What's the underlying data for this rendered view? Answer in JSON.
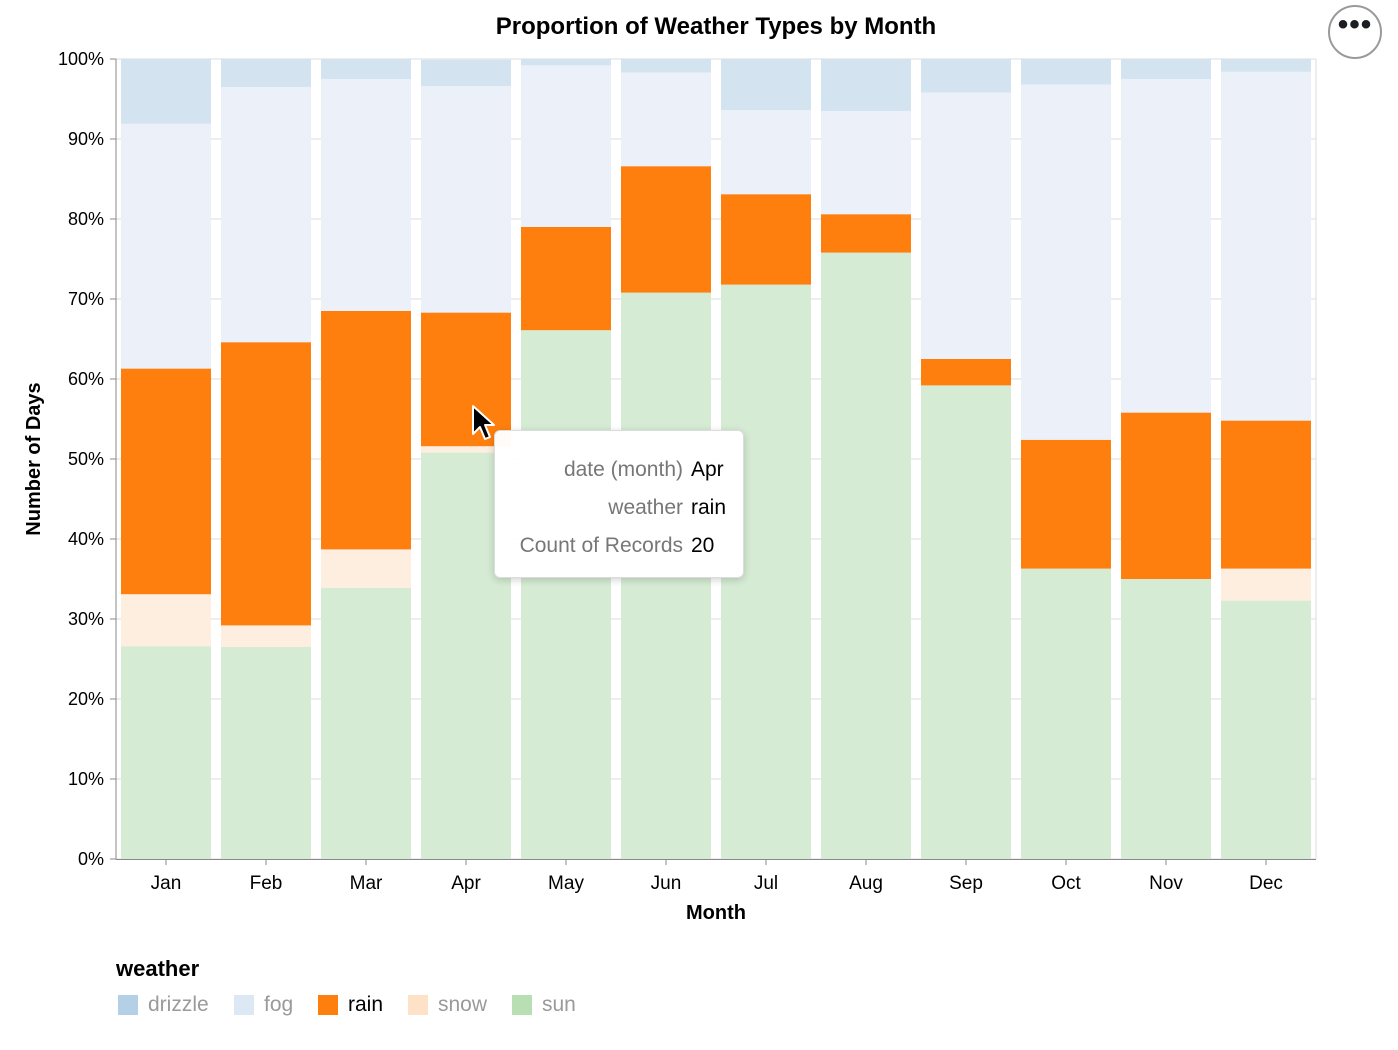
{
  "chart_data": {
    "type": "bar",
    "stacked": "normalize",
    "title": "Proportion of Weather Types by Month",
    "xlabel": "Month",
    "ylabel": "Number of Days",
    "ylim": [
      0,
      1
    ],
    "y_ticks": [
      "0%",
      "10%",
      "20%",
      "30%",
      "40%",
      "50%",
      "60%",
      "70%",
      "80%",
      "90%",
      "100%"
    ],
    "grid": true,
    "categories": [
      "Jan",
      "Feb",
      "Mar",
      "Apr",
      "May",
      "Jun",
      "Jul",
      "Aug",
      "Sep",
      "Oct",
      "Nov",
      "Dec"
    ],
    "series": [
      {
        "name": "sun",
        "color": "#d5ebd3",
        "legend_swatch": "#b8dfb4",
        "values": [
          0.266,
          0.265,
          0.339,
          0.508,
          0.661,
          0.708,
          0.718,
          0.758,
          0.592,
          0.363,
          0.35,
          0.323
        ]
      },
      {
        "name": "snow",
        "color": "#fdeee0",
        "legend_swatch": "#fde2c8",
        "values": [
          0.065,
          0.027,
          0.048,
          0.008,
          0.0,
          0.0,
          0.0,
          0.0,
          0.0,
          0.0,
          0.0,
          0.04
        ]
      },
      {
        "name": "rain",
        "color": "#ff7f0e",
        "legend_swatch": "#ff7f0e",
        "values": [
          0.282,
          0.354,
          0.298,
          0.167,
          0.129,
          0.158,
          0.113,
          0.048,
          0.033,
          0.161,
          0.208,
          0.185
        ]
      },
      {
        "name": "fog",
        "color": "#ecf1f9",
        "legend_swatch": "#dde8f5",
        "values": [
          0.306,
          0.319,
          0.29,
          0.283,
          0.202,
          0.117,
          0.105,
          0.129,
          0.333,
          0.444,
          0.417,
          0.436
        ]
      },
      {
        "name": "drizzle",
        "color": "#d3e3ef",
        "legend_swatch": "#b4d0e6",
        "values": [
          0.081,
          0.035,
          0.025,
          0.033,
          0.008,
          0.017,
          0.064,
          0.065,
          0.042,
          0.032,
          0.025,
          0.016
        ]
      }
    ],
    "legend": {
      "title": "weather",
      "position": "bottom-left",
      "items": [
        "drizzle",
        "fog",
        "rain",
        "snow",
        "sun"
      ],
      "highlighted": "rain"
    },
    "highlighted_series": "rain"
  },
  "tooltip": {
    "rows": [
      {
        "key": "date (month)",
        "value": "Apr"
      },
      {
        "key": "weather",
        "value": "rain"
      },
      {
        "key": "Count of Records",
        "value": "20"
      }
    ]
  },
  "menu": {
    "label": "•••"
  }
}
